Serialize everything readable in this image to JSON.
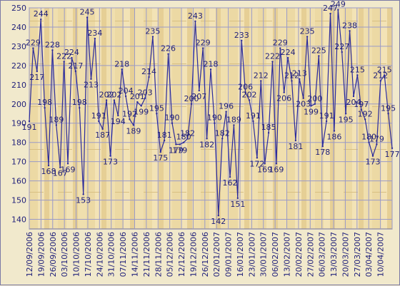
{
  "chart_data": {
    "type": "line",
    "title": "",
    "xlabel": "",
    "ylabel": "",
    "ylim": [
      135,
      250
    ],
    "grid": true,
    "y_ticks": [
      140,
      150,
      160,
      170,
      180,
      190,
      200,
      210,
      220,
      230,
      240,
      250
    ],
    "x_tick_labels": [
      "12/09/2006",
      "19/09/2006",
      "26/09/2006",
      "03/10/2006",
      "10/10/2006",
      "17/10/2006",
      "24/10/2006",
      "31/10/2006",
      "07/11/2006",
      "14/11/2006",
      "21/11/2006",
      "28/11/2006",
      "05/12/2006",
      "12/12/2006",
      "19/12/2006",
      "26/12/2006",
      "02/01/2007",
      "09/01/2007",
      "16/01/2007",
      "23/01/2007",
      "30/01/2007",
      "06/02/2007",
      "13/02/2007",
      "20/02/2007",
      "27/02/2007",
      "06/03/2007",
      "13/03/2007",
      "20/03/2007",
      "27/03/2007",
      "03/04/2007",
      "10/04/2007"
    ],
    "series": [
      {
        "color": "#2a2a9c",
        "values": [
          191,
          229,
          217,
          244,
          198,
          168,
          228,
          189,
          167,
          222,
          169,
          224,
          217,
          198,
          153,
          245,
          213,
          234,
          191,
          187,
          202,
          173,
          202,
          194,
          218,
          204,
          192,
          189,
          201,
          199,
          203,
          214,
          235,
          195,
          175,
          181,
          226,
          190,
          179,
          179,
          180,
          182,
          200,
          243,
          207,
          229,
          182,
          218,
          190,
          142,
          182,
          196,
          162,
          189,
          151,
          233,
          206,
          202,
          191,
          172,
          212,
          169,
          185,
          222,
          169,
          229,
          206,
          224,
          212,
          181,
          213,
          203,
          235,
          199,
          200,
          225,
          178,
          191,
          247,
          186,
          249,
          227,
          195,
          238,
          204,
          215,
          197,
          192,
          180,
          173,
          179,
          212,
          215,
          195,
          177
        ]
      }
    ]
  }
}
